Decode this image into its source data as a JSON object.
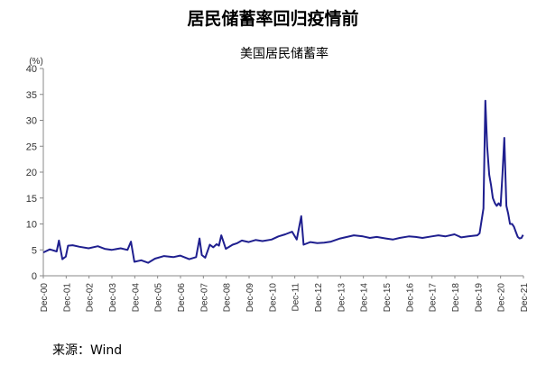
{
  "header": {
    "title": "居民储蓄率回归疫情前"
  },
  "footer": {
    "source": "来源：Wind"
  },
  "chart_data": {
    "type": "line",
    "title": "美国居民储蓄率",
    "unit_label": "(%)",
    "xlabel": "",
    "ylabel": "",
    "ylim": [
      0,
      40
    ],
    "yticks": [
      0,
      5,
      10,
      15,
      20,
      25,
      30,
      35,
      40
    ],
    "xlim": [
      2000.917,
      2021.917
    ],
    "xtick_labels": [
      "Dec-00",
      "Dec-01",
      "Dec-02",
      "Dec-03",
      "Dec-04",
      "Dec-05",
      "Dec-06",
      "Dec-07",
      "Dec-08",
      "Dec-09",
      "Dec-10",
      "Dec-11",
      "Dec-12",
      "Dec-13",
      "Dec-14",
      "Dec-15",
      "Dec-16",
      "Dec-17",
      "Dec-18",
      "Dec-19",
      "Dec-20",
      "Dec-21"
    ],
    "grid": false,
    "line_color": "#1f1f8f",
    "series": [
      {
        "x": [
          2000.92,
          2001.2,
          2001.5,
          2001.6,
          2001.75,
          2001.9,
          2002.0,
          2002.2,
          2002.5,
          2002.9,
          2003.3,
          2003.6,
          2003.9,
          2004.3,
          2004.6,
          2004.75,
          2004.9,
          2005.2,
          2005.5,
          2005.8,
          2006.2,
          2006.6,
          2006.9,
          2007.3,
          2007.6,
          2007.75,
          2007.85,
          2008.0,
          2008.2,
          2008.35,
          2008.5,
          2008.6,
          2008.7,
          2008.9,
          2009.2,
          2009.4,
          2009.6,
          2009.9,
          2010.2,
          2010.5,
          2010.9,
          2011.2,
          2011.5,
          2011.8,
          2012.0,
          2012.2,
          2012.3,
          2012.6,
          2012.9,
          2013.2,
          2013.5,
          2013.9,
          2014.2,
          2014.5,
          2014.9,
          2015.2,
          2015.5,
          2015.9,
          2016.2,
          2016.5,
          2016.9,
          2017.2,
          2017.5,
          2017.9,
          2018.2,
          2018.5,
          2018.9,
          2019.2,
          2019.5,
          2019.9,
          2020.0,
          2020.17,
          2020.25,
          2020.33,
          2020.42,
          2020.5,
          2020.58,
          2020.67,
          2020.75,
          2020.83,
          2020.92,
          2021.0,
          2021.08,
          2021.17,
          2021.25,
          2021.33,
          2021.42,
          2021.5,
          2021.58,
          2021.67,
          2021.75,
          2021.83,
          2021.9
        ],
        "values": [
          4.5,
          5.1,
          4.7,
          6.8,
          3.2,
          3.7,
          5.8,
          5.9,
          5.6,
          5.3,
          5.7,
          5.2,
          5.0,
          5.3,
          5.0,
          6.6,
          2.7,
          3.0,
          2.5,
          3.3,
          3.8,
          3.6,
          3.9,
          3.2,
          3.6,
          7.2,
          4.0,
          3.5,
          6.0,
          5.5,
          6.1,
          5.8,
          7.8,
          5.2,
          6.0,
          6.3,
          6.8,
          6.5,
          6.9,
          6.7,
          7.0,
          7.6,
          8.0,
          8.5,
          7.0,
          11.5,
          6.0,
          6.5,
          6.3,
          6.4,
          6.6,
          7.2,
          7.5,
          7.8,
          7.6,
          7.3,
          7.5,
          7.2,
          7.0,
          7.3,
          7.6,
          7.5,
          7.3,
          7.6,
          7.8,
          7.6,
          8.0,
          7.4,
          7.6,
          7.8,
          8.2,
          13.0,
          33.8,
          25.0,
          19.5,
          17.5,
          15.0,
          14.0,
          13.5,
          14.0,
          13.5,
          19.7,
          26.6,
          13.5,
          12.0,
          10.0,
          10.0,
          9.5,
          8.5,
          7.5,
          7.2,
          7.3,
          7.9
        ]
      }
    ]
  }
}
